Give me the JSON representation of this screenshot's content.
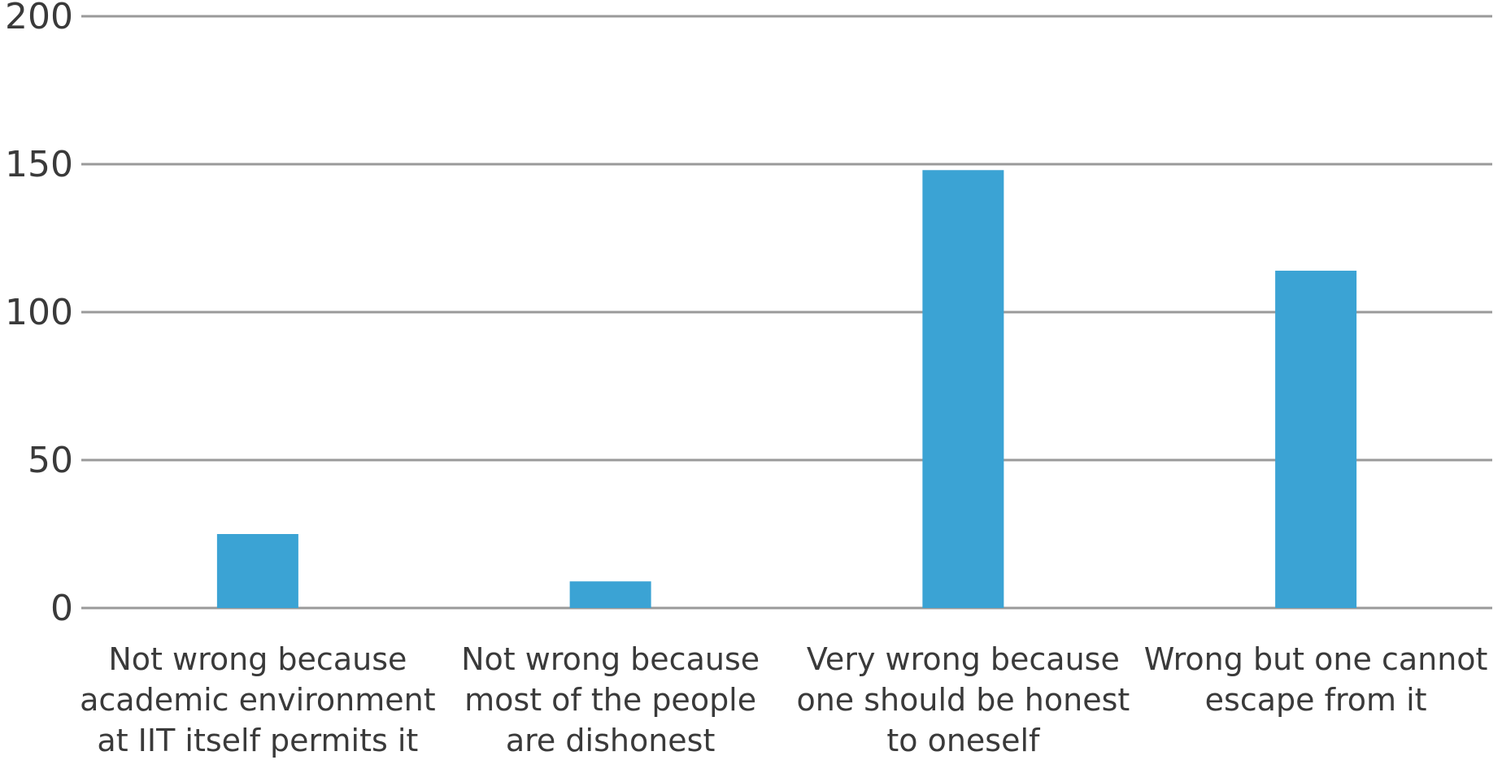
{
  "chart_data": {
    "type": "bar",
    "title": "",
    "xlabel": "",
    "ylabel": "",
    "ylim": [
      0,
      200
    ],
    "yticks": [
      0,
      50,
      100,
      150,
      200
    ],
    "grid": true,
    "legend": "none",
    "bar_color": "#3ba3d4",
    "categories": [
      [
        "Not wrong because",
        "academic environment",
        "at IIT itself permits it"
      ],
      [
        "Not wrong because",
        "most of the people",
        "are dishonest"
      ],
      [
        "Very wrong because",
        "one should be honest",
        "to oneself"
      ],
      [
        "Wrong but one cannot",
        "escape from it"
      ]
    ],
    "values": [
      25,
      9,
      148,
      114
    ]
  }
}
